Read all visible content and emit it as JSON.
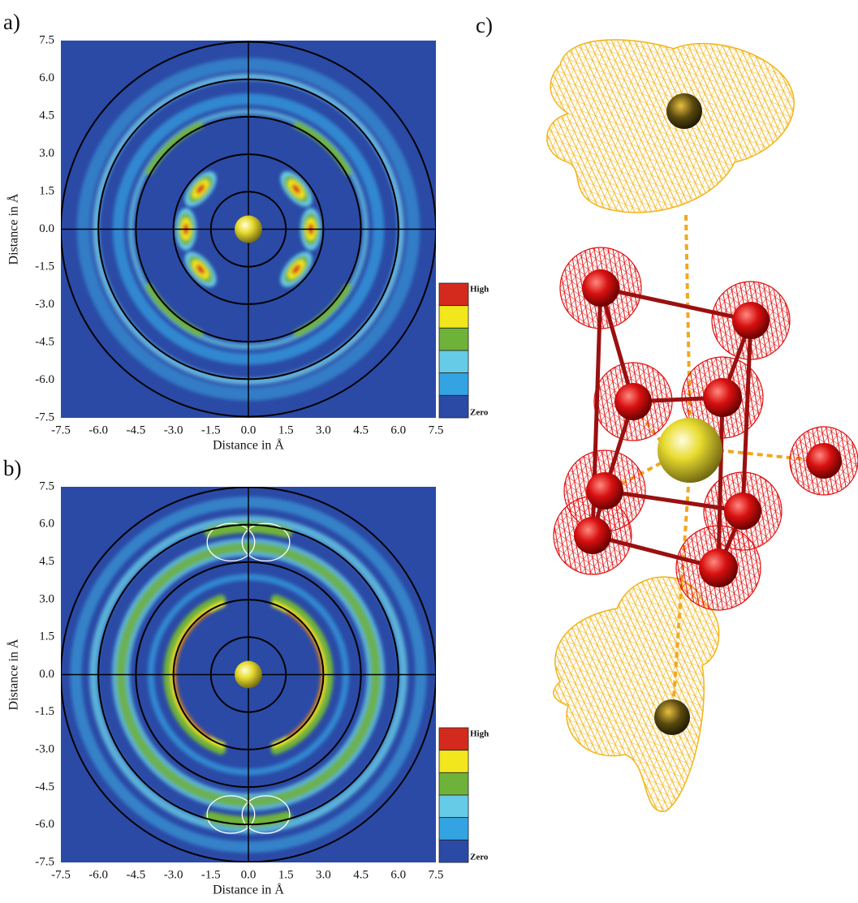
{
  "chart_data": [
    {
      "type": "contour",
      "panel_label": "a)",
      "xlabel": "Distance in Å",
      "ylabel": "Distance in Å",
      "xlim": [
        -7.5,
        7.5
      ],
      "ylim": [
        -7.5,
        7.5
      ],
      "xticks": [
        -7.5,
        {
          "value": -6,
          "label": "-6.0"
        },
        -4.5,
        {
          "value": -3,
          "label": "-3.0"
        },
        -1.5,
        {
          "value": 0,
          "label": "0.0"
        },
        1.5,
        {
          "value": 3,
          "label": "3.0"
        },
        4.5,
        {
          "value": 6,
          "label": "6.0"
        },
        7.5
      ],
      "yticks": [
        -7.5,
        {
          "value": -6,
          "label": "-6.0"
        },
        -4.5,
        {
          "value": -3,
          "label": "-3.0"
        },
        -1.5,
        {
          "value": 0,
          "label": "0.0"
        },
        1.5,
        {
          "value": 3,
          "label": "3.0"
        },
        4.5,
        {
          "value": 6,
          "label": "6.0"
        },
        7.5
      ],
      "colorbar_labels": [
        "High",
        "Zero"
      ],
      "colorbar_colors": [
        "#d42a1e",
        "#f2e61c",
        "#6fb23a",
        "#66cbe6",
        "#34a3e2",
        "#2a4aa6"
      ]
    },
    {
      "type": "contour",
      "panel_label": "b)",
      "xlabel": "Distance in Å",
      "ylabel": "Distance in Å",
      "xlim": [
        -7.5,
        7.5
      ],
      "ylim": [
        -7.5,
        7.5
      ],
      "xticks": [
        -7.5,
        {
          "value": -6,
          "label": "-6.0"
        },
        -4.5,
        {
          "value": -3,
          "label": "-3.0"
        },
        -1.5,
        {
          "value": 0,
          "label": "0.0"
        },
        1.5,
        {
          "value": 3,
          "label": "3.0"
        },
        4.5,
        {
          "value": 6,
          "label": "6.0"
        },
        7.5
      ],
      "yticks": [
        -7.5,
        {
          "value": -6,
          "label": "-6.0"
        },
        -4.5,
        {
          "value": -3,
          "label": "-3.0"
        },
        -1.5,
        {
          "value": 0,
          "label": "0.0"
        },
        1.5,
        {
          "value": 3,
          "label": "3.0"
        },
        4.5,
        {
          "value": 6,
          "label": "6.0"
        },
        7.5
      ],
      "colorbar_labels": [
        "High",
        "Zero"
      ],
      "colorbar_colors": [
        "#d42a1e",
        "#f2e61c",
        "#6fb23a",
        "#66cbe6",
        "#34a3e2",
        "#2a4aa6"
      ]
    }
  ],
  "panel_c": {
    "label": "c)"
  }
}
